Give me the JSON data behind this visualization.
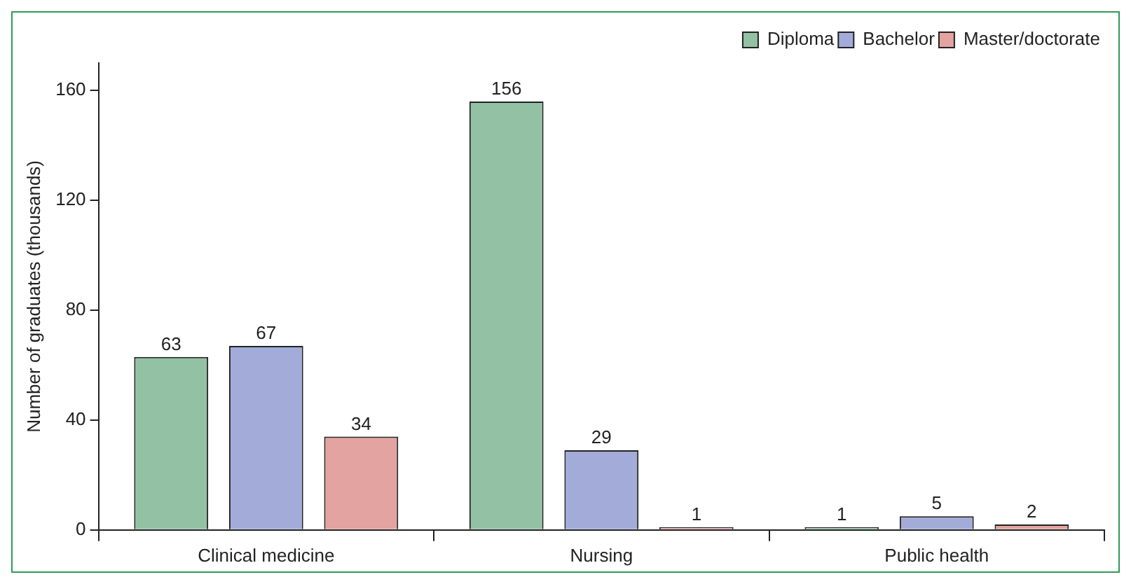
{
  "chart_data": {
    "type": "bar",
    "ylabel": "Number of graduates (thousands)",
    "categories": [
      "Clinical medicine",
      "Nursing",
      "Public health"
    ],
    "series": [
      {
        "name": "Diploma",
        "color": "#93c1a4",
        "values": [
          63,
          156,
          1
        ]
      },
      {
        "name": "Bachelor",
        "color": "#a3acd9",
        "values": [
          67,
          29,
          5
        ]
      },
      {
        "name": "Master/doctorate",
        "color": "#e3a3a0",
        "values": [
          34,
          1,
          2
        ]
      }
    ],
    "ylim": [
      0,
      170
    ],
    "yticks": [
      0,
      40,
      80,
      120,
      160
    ],
    "grid": false,
    "legend": "top right",
    "data_labels": true
  }
}
